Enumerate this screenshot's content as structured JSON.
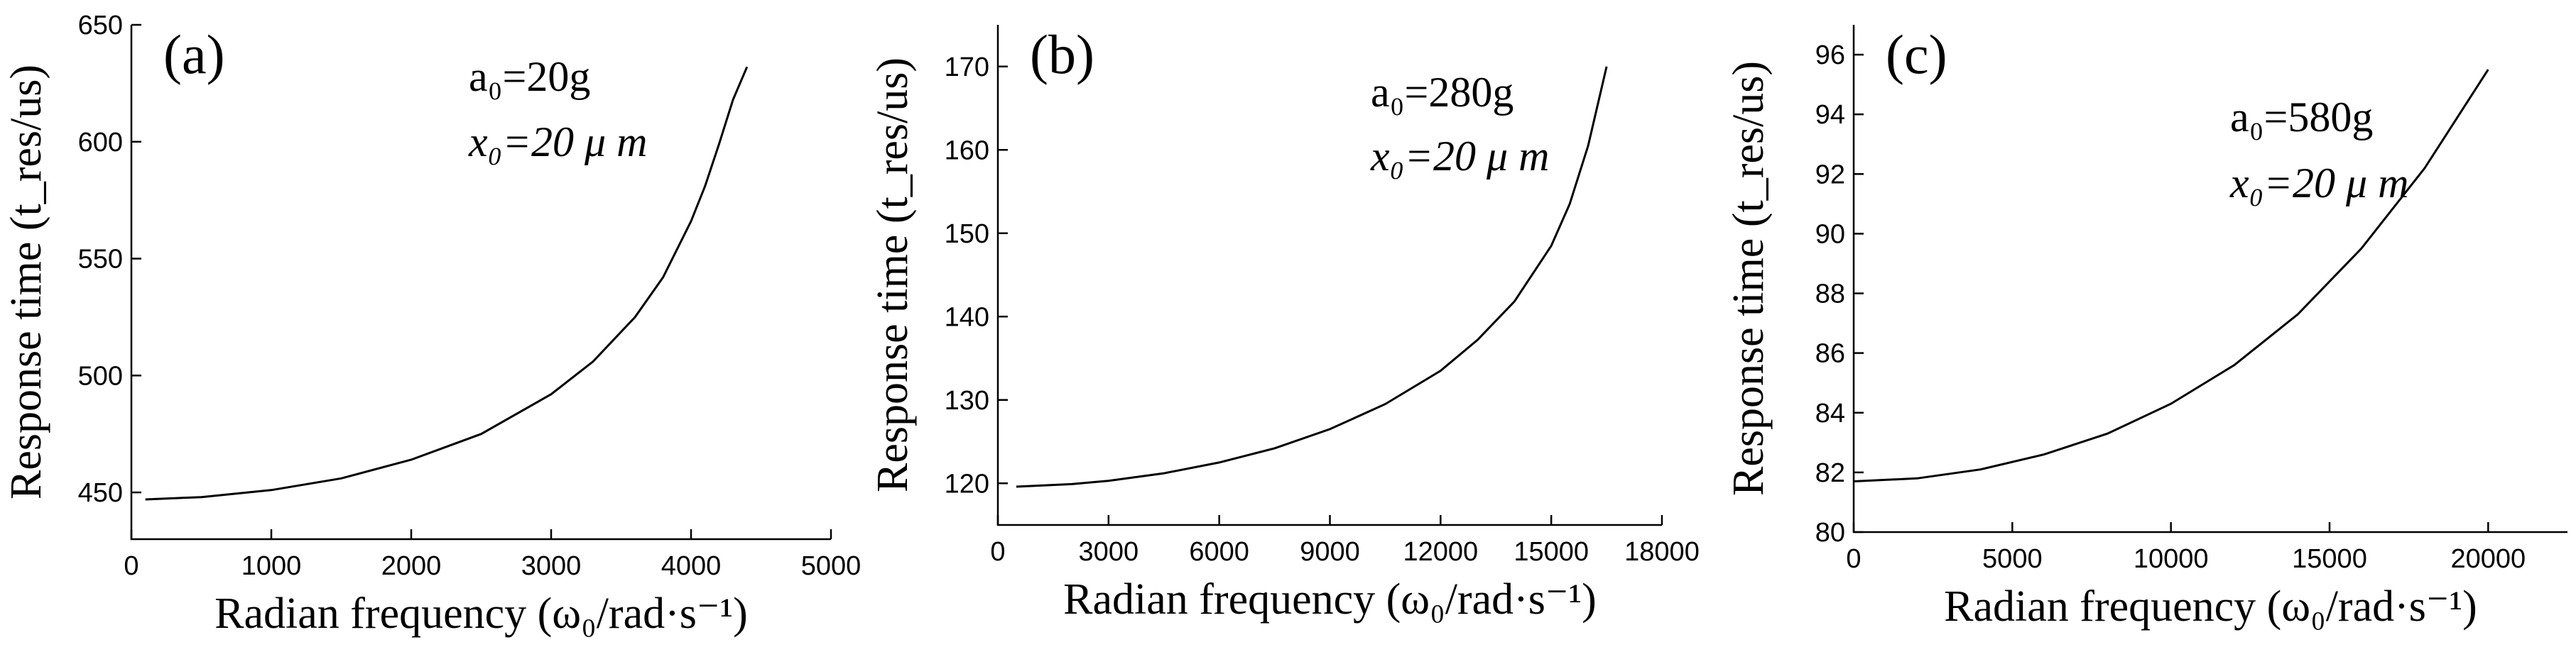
{
  "chart_data": [
    {
      "type": "line",
      "panel_label": "(a)",
      "annotation_line1": "a₀=20g",
      "annotation_line2": "x₀=20 μ m",
      "ylabel": "Response time (t_res/us)",
      "xlabel": "Radian frequency (ω₀/rad·s⁻¹)",
      "xlim": [
        0,
        5000
      ],
      "ylim": [
        430,
        650
      ],
      "xticks": [
        0,
        1000,
        2000,
        3000,
        4000,
        5000
      ],
      "yticks": [
        450,
        500,
        550,
        600,
        650
      ],
      "series": [
        {
          "x": [
            100,
            500,
            1000,
            1500,
            2000,
            2500,
            3000,
            3300,
            3600,
            3800,
            4000,
            4100,
            4200,
            4300,
            4400
          ],
          "values": [
            447,
            448,
            451,
            456,
            464,
            475,
            492,
            506,
            525,
            542,
            566,
            581,
            599,
            618,
            632
          ]
        }
      ]
    },
    {
      "type": "line",
      "panel_label": "(b)",
      "annotation_line1": "a₀=280g",
      "annotation_line2": "x₀=20 μ m",
      "ylabel": "Response time (t_res/us)",
      "xlabel": "Radian frequency (ω₀/rad·s⁻¹)",
      "xlim": [
        0,
        18000
      ],
      "ylim": [
        115,
        175
      ],
      "xticks": [
        0,
        3000,
        6000,
        9000,
        12000,
        15000,
        18000
      ],
      "yticks": [
        120,
        130,
        140,
        150,
        160,
        170
      ],
      "series": [
        {
          "x": [
            500,
            2000,
            3000,
            4500,
            6000,
            7500,
            9000,
            10500,
            12000,
            13000,
            14000,
            15000,
            15500,
            16000,
            16500
          ],
          "values": [
            119.6,
            119.9,
            120.3,
            121.2,
            122.5,
            124.2,
            126.5,
            129.5,
            133.5,
            137.2,
            141.8,
            148.5,
            153.5,
            160.5,
            170
          ]
        }
      ]
    },
    {
      "type": "line",
      "panel_label": "(c)",
      "annotation_line1": "a₀=580g",
      "annotation_line2": "x₀=20 μ m",
      "ylabel": "Response time (t_res/us)",
      "xlabel": "Radian frequency (ω₀/rad·s⁻¹)",
      "xlim": [
        0,
        22500
      ],
      "ylim": [
        80,
        97
      ],
      "xticks": [
        0,
        5000,
        10000,
        15000,
        20000
      ],
      "yticks": [
        80,
        82,
        84,
        86,
        88,
        90,
        92,
        94,
        96
      ],
      "series": [
        {
          "x": [
            0,
            2000,
            4000,
            6000,
            8000,
            10000,
            12000,
            14000,
            16000,
            18000,
            20000
          ],
          "values": [
            81.7,
            81.8,
            82.1,
            82.6,
            83.3,
            84.3,
            85.6,
            87.3,
            89.5,
            92.2,
            95.5
          ]
        }
      ]
    }
  ]
}
